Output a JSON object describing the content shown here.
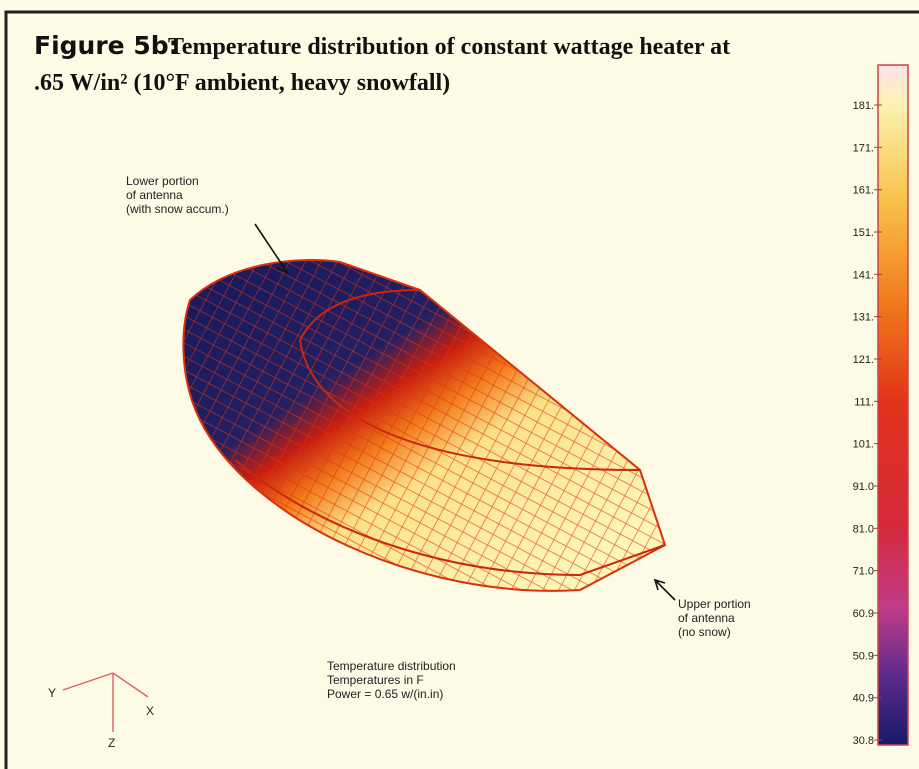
{
  "figure": {
    "label": "Figure 5b:",
    "title_lines": [
      "Temperature distribution of constant wattage heater at",
      ".65 W/in² (10°F ambient, heavy snowfall)"
    ],
    "annotations": [
      {
        "lines": [
          "Lower portion",
          "of antenna",
          "(with snow accum.)"
        ]
      },
      {
        "lines": [
          "Upper portion",
          "of antenna",
          "(no snow)"
        ]
      }
    ],
    "caption_lines": [
      "Temperature distribution",
      "Temperatures in F",
      "Power  =  0.65 w/(in.in)"
    ],
    "axes": {
      "y": "Y",
      "x": "X",
      "z": "Z"
    },
    "colorbar_labels": [
      "181.",
      "171.",
      "161.",
      "151.",
      "141.",
      "131.",
      "121.",
      "111.",
      "101.",
      "91.0",
      "81.0",
      "71.0",
      "60.9",
      "50.9",
      "40.9",
      "30.8"
    ]
  }
}
